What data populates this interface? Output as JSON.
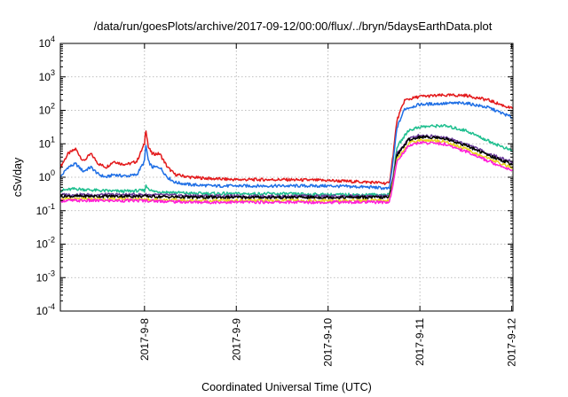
{
  "chart_data": {
    "type": "line",
    "title": "/data/run/goesPlots/archive/2017-09-12/00:00/flux/../bryn/5daysEarthData.plot",
    "xlabel": "Coordinated Universal Time (UTC)",
    "ylabel": "cSv/day",
    "yscale": "log",
    "ylim": [
      0.0001,
      10000
    ],
    "y_ticks": [
      {
        "value": 0.0001,
        "base": "10",
        "exp": "-4"
      },
      {
        "value": 0.001,
        "base": "10",
        "exp": "-3"
      },
      {
        "value": 0.01,
        "base": "10",
        "exp": "-2"
      },
      {
        "value": 0.1,
        "base": "10",
        "exp": "-1"
      },
      {
        "value": 1,
        "base": "10",
        "exp": "0"
      },
      {
        "value": 10,
        "base": "10",
        "exp": "1"
      },
      {
        "value": 100,
        "base": "10",
        "exp": "2"
      },
      {
        "value": 1000,
        "base": "10",
        "exp": "3"
      },
      {
        "value": 10000,
        "base": "10",
        "exp": "4"
      }
    ],
    "xlim": [
      "2017-09-07T02:00",
      "2017-09-12T00:20"
    ],
    "x_ticks": [
      {
        "value": "2017-09-08T00:00",
        "label": "2017-9-8"
      },
      {
        "value": "2017-09-09T00:00",
        "label": "2017-9-9"
      },
      {
        "value": "2017-09-10T00:00",
        "label": "2017-9-10"
      },
      {
        "value": "2017-09-11T00:00",
        "label": "2017-9-11"
      },
      {
        "value": "2017-09-12T00:00",
        "label": "2017-9-12"
      }
    ],
    "grid": true,
    "legend": "none",
    "series": [
      {
        "color": "#e31a1c",
        "points": [
          [
            "2017-09-07T02:00",
            2.0
          ],
          [
            "2017-09-07T04:00",
            5.0
          ],
          [
            "2017-09-07T06:00",
            7.0
          ],
          [
            "2017-09-07T08:00",
            3.0
          ],
          [
            "2017-09-07T10:00",
            5.0
          ],
          [
            "2017-09-07T12:00",
            2.5
          ],
          [
            "2017-09-07T14:00",
            2.0
          ],
          [
            "2017-09-07T16:00",
            3.0
          ],
          [
            "2017-09-07T18:00",
            2.5
          ],
          [
            "2017-09-07T20:00",
            2.5
          ],
          [
            "2017-09-07T22:00",
            3.0
          ],
          [
            "2017-09-08T00:00",
            10.0
          ],
          [
            "2017-09-08T00:20",
            30.0
          ],
          [
            "2017-09-08T01:00",
            8.0
          ],
          [
            "2017-09-08T02:00",
            5.0
          ],
          [
            "2017-09-08T04:00",
            5.0
          ],
          [
            "2017-09-08T06:00",
            2.0
          ],
          [
            "2017-09-08T08:00",
            1.2
          ],
          [
            "2017-09-08T12:00",
            1.0
          ],
          [
            "2017-09-08T18:00",
            0.9
          ],
          [
            "2017-09-09T00:00",
            0.85
          ],
          [
            "2017-09-09T12:00",
            0.85
          ],
          [
            "2017-09-10T00:00",
            0.8
          ],
          [
            "2017-09-10T12:00",
            0.7
          ],
          [
            "2017-09-10T16:00",
            0.65
          ],
          [
            "2017-09-10T17:00",
            5.0
          ],
          [
            "2017-09-10T18:00",
            50.0
          ],
          [
            "2017-09-10T20:00",
            200.0
          ],
          [
            "2017-09-11T00:00",
            260.0
          ],
          [
            "2017-09-11T06:00",
            280.0
          ],
          [
            "2017-09-11T12:00",
            280.0
          ],
          [
            "2017-09-11T18:00",
            200.0
          ],
          [
            "2017-09-12T00:20",
            110.0
          ]
        ]
      },
      {
        "color": "#1f6fe5",
        "points": [
          [
            "2017-09-07T02:00",
            1.0
          ],
          [
            "2017-09-07T04:00",
            2.0
          ],
          [
            "2017-09-07T06:00",
            2.5
          ],
          [
            "2017-09-07T08:00",
            1.5
          ],
          [
            "2017-09-07T10:00",
            2.0
          ],
          [
            "2017-09-07T12:00",
            1.2
          ],
          [
            "2017-09-07T14:00",
            1.0
          ],
          [
            "2017-09-07T16:00",
            1.2
          ],
          [
            "2017-09-07T18:00",
            1.1
          ],
          [
            "2017-09-07T20:00",
            1.1
          ],
          [
            "2017-09-07T22:00",
            1.2
          ],
          [
            "2017-09-08T00:00",
            3.0
          ],
          [
            "2017-09-08T00:20",
            10.0
          ],
          [
            "2017-09-08T01:00",
            3.0
          ],
          [
            "2017-09-08T02:00",
            2.0
          ],
          [
            "2017-09-08T04:00",
            2.0
          ],
          [
            "2017-09-08T06:00",
            1.0
          ],
          [
            "2017-09-08T08:00",
            0.7
          ],
          [
            "2017-09-08T12:00",
            0.6
          ],
          [
            "2017-09-08T18:00",
            0.55
          ],
          [
            "2017-09-09T00:00",
            0.55
          ],
          [
            "2017-09-09T12:00",
            0.55
          ],
          [
            "2017-09-10T00:00",
            0.55
          ],
          [
            "2017-09-10T12:00",
            0.5
          ],
          [
            "2017-09-10T16:00",
            0.45
          ],
          [
            "2017-09-10T17:00",
            3.0
          ],
          [
            "2017-09-10T18:00",
            30.0
          ],
          [
            "2017-09-10T20:00",
            110.0
          ],
          [
            "2017-09-11T00:00",
            150.0
          ],
          [
            "2017-09-11T06:00",
            160.0
          ],
          [
            "2017-09-11T12:00",
            165.0
          ],
          [
            "2017-09-11T18:00",
            120.0
          ],
          [
            "2017-09-12T00:20",
            60.0
          ]
        ]
      },
      {
        "color": "#1fbf8f",
        "points": [
          [
            "2017-09-07T02:00",
            0.4
          ],
          [
            "2017-09-07T06:00",
            0.45
          ],
          [
            "2017-09-07T12:00",
            0.4
          ],
          [
            "2017-09-07T18:00",
            0.38
          ],
          [
            "2017-09-08T00:00",
            0.4
          ],
          [
            "2017-09-08T00:20",
            0.55
          ],
          [
            "2017-09-08T02:00",
            0.38
          ],
          [
            "2017-09-08T12:00",
            0.33
          ],
          [
            "2017-09-09T00:00",
            0.32
          ],
          [
            "2017-09-09T12:00",
            0.32
          ],
          [
            "2017-09-10T00:00",
            0.3
          ],
          [
            "2017-09-10T16:00",
            0.3
          ],
          [
            "2017-09-10T17:00",
            1.0
          ],
          [
            "2017-09-10T18:00",
            8.0
          ],
          [
            "2017-09-10T21:00",
            25.0
          ],
          [
            "2017-09-11T00:00",
            32.0
          ],
          [
            "2017-09-11T06:00",
            35.0
          ],
          [
            "2017-09-11T12:00",
            25.0
          ],
          [
            "2017-09-11T18:00",
            12.0
          ],
          [
            "2017-09-12T00:20",
            6.0
          ]
        ]
      },
      {
        "color": "#6a3d9a",
        "points": [
          [
            "2017-09-07T02:00",
            0.3
          ],
          [
            "2017-09-07T12:00",
            0.3
          ],
          [
            "2017-09-08T00:00",
            0.3
          ],
          [
            "2017-09-08T12:00",
            0.28
          ],
          [
            "2017-09-09T00:00",
            0.27
          ],
          [
            "2017-09-10T00:00",
            0.27
          ],
          [
            "2017-09-10T16:00",
            0.27
          ],
          [
            "2017-09-10T17:00",
            1.0
          ],
          [
            "2017-09-10T18:00",
            5.0
          ],
          [
            "2017-09-10T21:00",
            14.0
          ],
          [
            "2017-09-11T00:00",
            18.0
          ],
          [
            "2017-09-11T06:00",
            16.0
          ],
          [
            "2017-09-11T12:00",
            10.0
          ],
          [
            "2017-09-11T18:00",
            5.0
          ],
          [
            "2017-09-12T00:20",
            2.8
          ]
        ]
      },
      {
        "color": "#000000",
        "points": [
          [
            "2017-09-07T02:00",
            0.27
          ],
          [
            "2017-09-07T12:00",
            0.27
          ],
          [
            "2017-09-08T00:00",
            0.27
          ],
          [
            "2017-09-08T12:00",
            0.25
          ],
          [
            "2017-09-09T00:00",
            0.25
          ],
          [
            "2017-09-10T00:00",
            0.25
          ],
          [
            "2017-09-10T16:00",
            0.25
          ],
          [
            "2017-09-10T17:00",
            0.9
          ],
          [
            "2017-09-10T18:00",
            4.5
          ],
          [
            "2017-09-10T21:00",
            13.0
          ],
          [
            "2017-09-11T00:00",
            16.0
          ],
          [
            "2017-09-11T06:00",
            15.0
          ],
          [
            "2017-09-11T12:00",
            9.0
          ],
          [
            "2017-09-11T18:00",
            4.5
          ],
          [
            "2017-09-12T00:20",
            2.4
          ]
        ]
      },
      {
        "color": "#e7d51c",
        "points": [
          [
            "2017-09-07T02:00",
            0.22
          ],
          [
            "2017-09-07T12:00",
            0.22
          ],
          [
            "2017-09-08T00:00",
            0.22
          ],
          [
            "2017-09-08T12:00",
            0.2
          ],
          [
            "2017-09-09T00:00",
            0.2
          ],
          [
            "2017-09-10T00:00",
            0.2
          ],
          [
            "2017-09-10T16:00",
            0.2
          ],
          [
            "2017-09-10T17:00",
            0.7
          ],
          [
            "2017-09-10T18:00",
            3.5
          ],
          [
            "2017-09-10T21:00",
            10.0
          ],
          [
            "2017-09-11T00:00",
            13.0
          ],
          [
            "2017-09-11T06:00",
            12.0
          ],
          [
            "2017-09-11T12:00",
            7.0
          ],
          [
            "2017-09-11T18:00",
            3.5
          ],
          [
            "2017-09-12T00:20",
            1.9
          ]
        ]
      },
      {
        "color": "#ff1fd8",
        "points": [
          [
            "2017-09-07T02:00",
            0.2
          ],
          [
            "2017-09-07T12:00",
            0.2
          ],
          [
            "2017-09-08T00:00",
            0.2
          ],
          [
            "2017-09-08T12:00",
            0.18
          ],
          [
            "2017-09-09T00:00",
            0.18
          ],
          [
            "2017-09-10T00:00",
            0.18
          ],
          [
            "2017-09-10T16:00",
            0.18
          ],
          [
            "2017-09-10T17:00",
            0.6
          ],
          [
            "2017-09-10T18:00",
            3.0
          ],
          [
            "2017-09-10T21:00",
            8.5
          ],
          [
            "2017-09-11T00:00",
            11.0
          ],
          [
            "2017-09-11T06:00",
            10.0
          ],
          [
            "2017-09-11T12:00",
            6.0
          ],
          [
            "2017-09-11T18:00",
            3.0
          ],
          [
            "2017-09-12T00:20",
            1.6
          ]
        ]
      }
    ]
  }
}
